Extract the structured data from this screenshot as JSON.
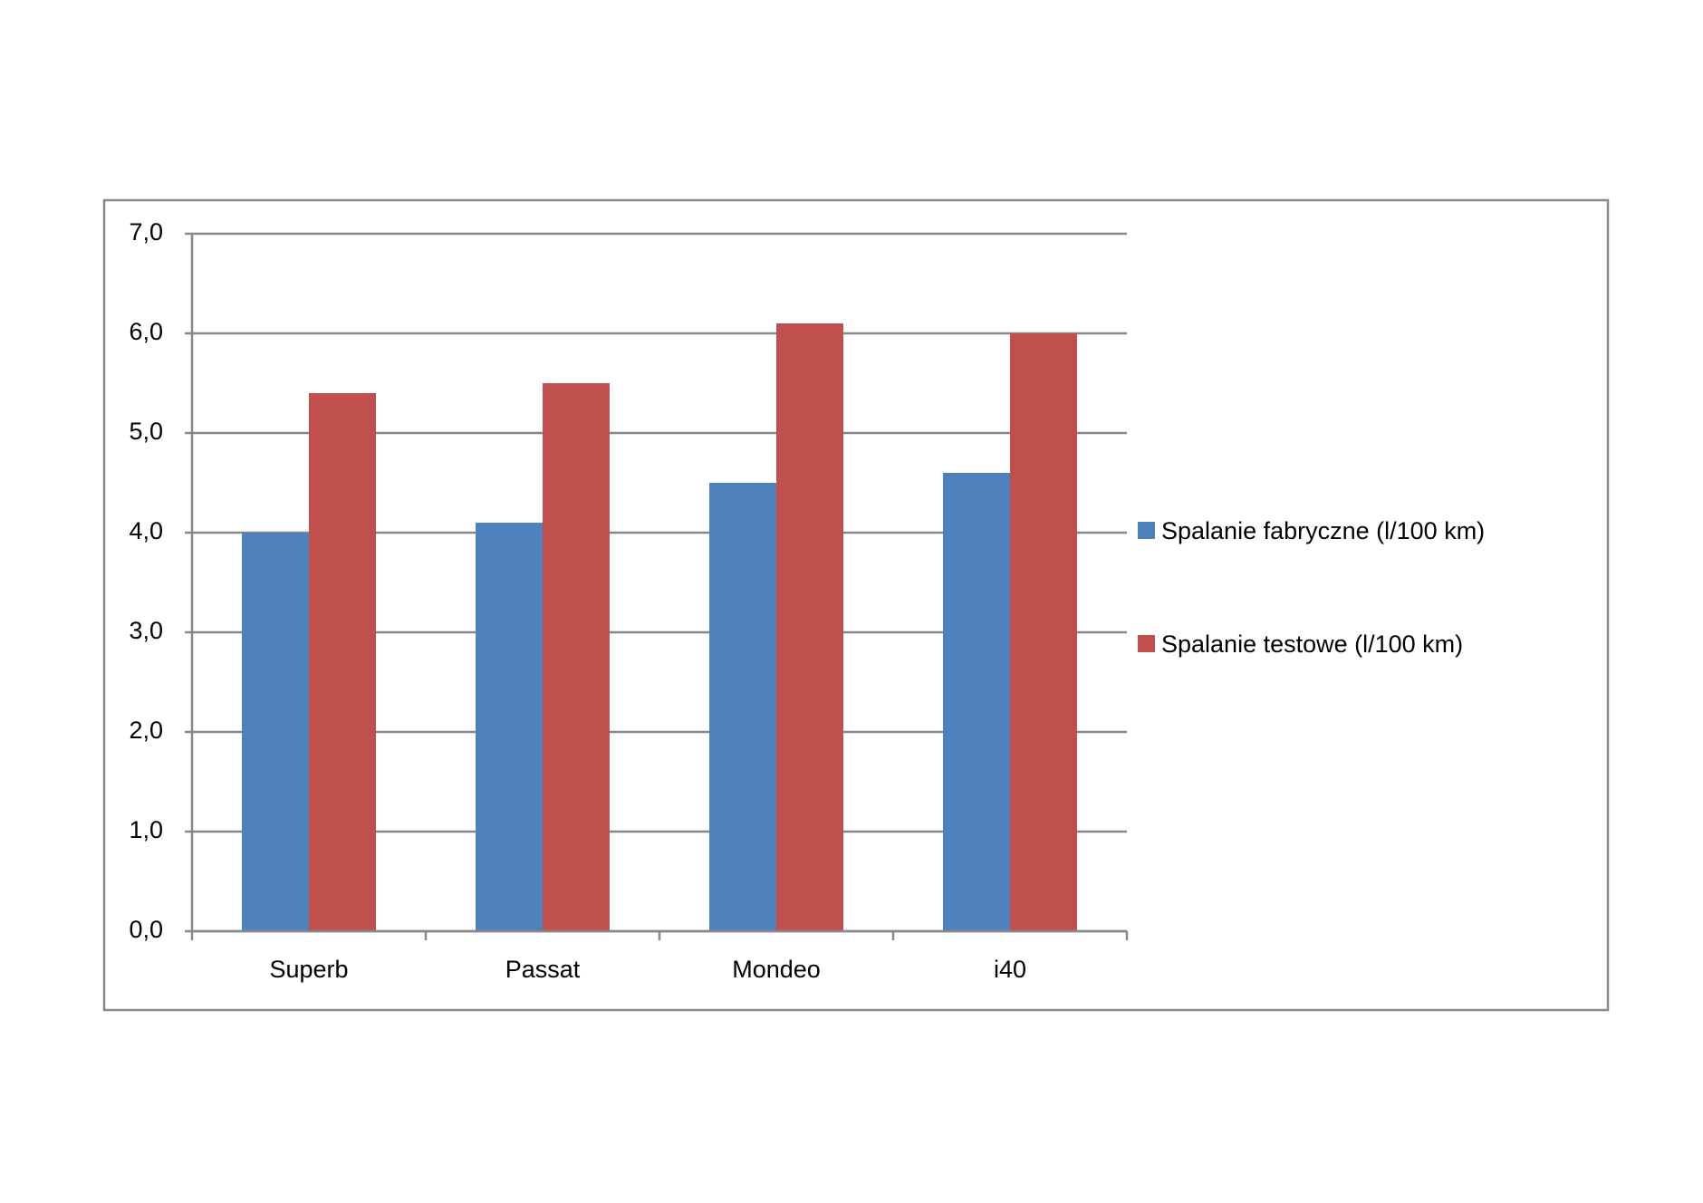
{
  "chart_data": {
    "type": "bar",
    "categories": [
      "Superb",
      "Passat",
      "Mondeo",
      "i40"
    ],
    "series": [
      {
        "name": "Spalanie fabryczne (l/100 km)",
        "color": "#4f81bd",
        "values": [
          4.0,
          4.1,
          4.5,
          4.6
        ]
      },
      {
        "name": "Spalanie testowe (l/100 km)",
        "color": "#c0504d",
        "values": [
          5.4,
          5.5,
          6.1,
          6.0
        ]
      }
    ],
    "ylim": [
      0,
      7
    ],
    "yticks": [
      {
        "value": 0,
        "label": "0,0"
      },
      {
        "value": 1,
        "label": "1,0"
      },
      {
        "value": 2,
        "label": "2,0"
      },
      {
        "value": 3,
        "label": "3,0"
      },
      {
        "value": 4,
        "label": "4,0"
      },
      {
        "value": 5,
        "label": "5,0"
      },
      {
        "value": 6,
        "label": "6,0"
      },
      {
        "value": 7,
        "label": "7,0"
      }
    ],
    "grid": true,
    "legend": "right"
  }
}
